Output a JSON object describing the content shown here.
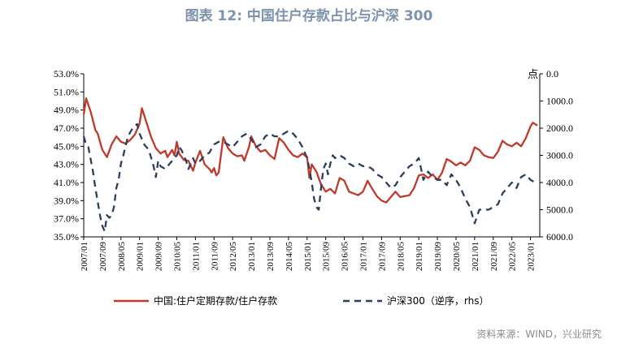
{
  "chart_data": {
    "type": "line",
    "title": "图表 12: 中国住户存款占比与沪深 300",
    "right_axis_label": "点",
    "source": "资料来源：WIND，兴业研究",
    "x_ticks": [
      "2007/01",
      "2007/09",
      "2008/05",
      "2009/01",
      "2009/09",
      "2010/05",
      "2011/01",
      "2011/09",
      "2012/05",
      "2013/01",
      "2013/09",
      "2014/05",
      "2015/01",
      "2015/09",
      "2016/05",
      "2017/01",
      "2017/09",
      "2018/05",
      "2019/01",
      "2019/09",
      "2020/05",
      "2021/01",
      "2021/09",
      "2022/05",
      "2023/01"
    ],
    "y_left": {
      "min": 35.0,
      "max": 53.0,
      "ticks": [
        "35.0%",
        "37.0%",
        "39.0%",
        "41.0%",
        "43.0%",
        "45.0%",
        "47.0%",
        "49.0%",
        "51.0%",
        "53.0%"
      ]
    },
    "y_right": {
      "min": 0,
      "max": 6000,
      "inverted": true,
      "ticks": [
        "0.0",
        "1000.0",
        "2000.0",
        "3000.0",
        "4000.0",
        "5000.0",
        "6000.0"
      ]
    },
    "series": [
      {
        "name": "中国:住户定期存款/住户存款",
        "axis": "left",
        "color": "#c0392b",
        "style": "solid",
        "points": [
          [
            "2007/01",
            48.5
          ],
          [
            "2007/02",
            50.3
          ],
          [
            "2007/04",
            48.8
          ],
          [
            "2007/06",
            46.8
          ],
          [
            "2007/07",
            46.4
          ],
          [
            "2007/09",
            44.6
          ],
          [
            "2007/11",
            43.8
          ],
          [
            "2008/01",
            45.2
          ],
          [
            "2008/03",
            46.1
          ],
          [
            "2008/05",
            45.5
          ],
          [
            "2008/07",
            45.3
          ],
          [
            "2008/09",
            45.7
          ],
          [
            "2008/11",
            46.3
          ],
          [
            "2009/01",
            47.5
          ],
          [
            "2009/02",
            49.2
          ],
          [
            "2009/04",
            47.6
          ],
          [
            "2009/06",
            46.0
          ],
          [
            "2009/08",
            44.8
          ],
          [
            "2009/10",
            44.2
          ],
          [
            "2009/12",
            44.5
          ],
          [
            "2010/01",
            43.8
          ],
          [
            "2010/03",
            44.6
          ],
          [
            "2010/04",
            44.0
          ],
          [
            "2010/05",
            45.5
          ],
          [
            "2010/06",
            44.2
          ],
          [
            "2010/08",
            43.5
          ],
          [
            "2010/10",
            43.4
          ],
          [
            "2010/12",
            42.3
          ],
          [
            "2011/01",
            43.2
          ],
          [
            "2011/03",
            44.5
          ],
          [
            "2011/05",
            43.0
          ],
          [
            "2011/07",
            42.5
          ],
          [
            "2011/08",
            42.1
          ],
          [
            "2011/09",
            42.6
          ],
          [
            "2011/10",
            41.8
          ],
          [
            "2011/11",
            42.1
          ],
          [
            "2012/01",
            46.0
          ],
          [
            "2012/03",
            44.8
          ],
          [
            "2012/05",
            44.2
          ],
          [
            "2012/07",
            43.9
          ],
          [
            "2012/09",
            44.0
          ],
          [
            "2012/10",
            43.4
          ],
          [
            "2012/12",
            44.9
          ],
          [
            "2013/01",
            46.1
          ],
          [
            "2013/03",
            45.0
          ],
          [
            "2013/05",
            44.4
          ],
          [
            "2013/07",
            44.6
          ],
          [
            "2013/09",
            44.0
          ],
          [
            "2013/11",
            43.6
          ],
          [
            "2014/01",
            45.9
          ],
          [
            "2014/03",
            45.4
          ],
          [
            "2014/05",
            44.6
          ],
          [
            "2014/07",
            44.0
          ],
          [
            "2014/09",
            43.8
          ],
          [
            "2014/11",
            44.2
          ],
          [
            "2015/01",
            43.8
          ],
          [
            "2015/02",
            41.5
          ],
          [
            "2015/03",
            43.0
          ],
          [
            "2015/05",
            42.2
          ],
          [
            "2015/07",
            40.8
          ],
          [
            "2015/09",
            40.0
          ],
          [
            "2015/11",
            40.3
          ],
          [
            "2016/01",
            39.8
          ],
          [
            "2016/03",
            41.5
          ],
          [
            "2016/05",
            41.2
          ],
          [
            "2016/07",
            40.0
          ],
          [
            "2016/09",
            39.8
          ],
          [
            "2016/11",
            39.6
          ],
          [
            "2017/01",
            40.0
          ],
          [
            "2017/03",
            41.2
          ],
          [
            "2017/05",
            40.3
          ],
          [
            "2017/07",
            39.5
          ],
          [
            "2017/09",
            39.0
          ],
          [
            "2017/11",
            38.8
          ],
          [
            "2018/01",
            39.4
          ],
          [
            "2018/03",
            40.0
          ],
          [
            "2018/05",
            39.4
          ],
          [
            "2018/07",
            39.5
          ],
          [
            "2018/09",
            39.6
          ],
          [
            "2018/11",
            40.4
          ],
          [
            "2019/01",
            41.8
          ],
          [
            "2019/03",
            41.9
          ],
          [
            "2019/05",
            41.5
          ],
          [
            "2019/07",
            41.9
          ],
          [
            "2019/09",
            41.3
          ],
          [
            "2019/11",
            42.1
          ],
          [
            "2020/01",
            43.6
          ],
          [
            "2020/03",
            43.3
          ],
          [
            "2020/05",
            42.9
          ],
          [
            "2020/07",
            43.2
          ],
          [
            "2020/09",
            42.9
          ],
          [
            "2020/11",
            43.4
          ],
          [
            "2021/01",
            44.9
          ],
          [
            "2021/03",
            44.6
          ],
          [
            "2021/05",
            44.0
          ],
          [
            "2021/07",
            43.8
          ],
          [
            "2021/09",
            43.7
          ],
          [
            "2021/11",
            44.4
          ],
          [
            "2022/01",
            45.6
          ],
          [
            "2022/03",
            45.2
          ],
          [
            "2022/05",
            45.0
          ],
          [
            "2022/07",
            45.4
          ],
          [
            "2022/09",
            45.0
          ],
          [
            "2022/11",
            45.9
          ],
          [
            "2023/01",
            47.2
          ],
          [
            "2023/02",
            47.6
          ],
          [
            "2023/04",
            47.3
          ]
        ]
      },
      {
        "name": "沪深300（逆序，rhs）",
        "axis": "right",
        "color": "#2c3e5c",
        "style": "dashed",
        "points": [
          [
            "2007/01",
            2300
          ],
          [
            "2007/02",
            2600
          ],
          [
            "2007/03",
            2700
          ],
          [
            "2007/05",
            3600
          ],
          [
            "2007/06",
            4200
          ],
          [
            "2007/08",
            5200
          ],
          [
            "2007/09",
            5600
          ],
          [
            "2007/10",
            5800
          ],
          [
            "2007/11",
            5200
          ],
          [
            "2007/12",
            5300
          ],
          [
            "2008/01",
            5200
          ],
          [
            "2008/02",
            4900
          ],
          [
            "2008/03",
            4200
          ],
          [
            "2008/04",
            3900
          ],
          [
            "2008/05",
            3300
          ],
          [
            "2008/06",
            3000
          ],
          [
            "2008/08",
            2300
          ],
          [
            "2008/10",
            2000
          ],
          [
            "2008/11",
            1900
          ],
          [
            "2008/12",
            1850
          ],
          [
            "2009/01",
            2200
          ],
          [
            "2009/03",
            2600
          ],
          [
            "2009/05",
            2800
          ],
          [
            "2009/07",
            3400
          ],
          [
            "2009/08",
            3800
          ],
          [
            "2009/09",
            3200
          ],
          [
            "2009/10",
            3400
          ],
          [
            "2009/12",
            3500
          ],
          [
            "2010/01",
            3400
          ],
          [
            "2010/03",
            3200
          ],
          [
            "2010/05",
            3000
          ],
          [
            "2010/06",
            2700
          ],
          [
            "2010/07",
            2800
          ],
          [
            "2010/09",
            3200
          ],
          [
            "2010/10",
            3500
          ],
          [
            "2010/12",
            3100
          ],
          [
            "2011/01",
            3300
          ],
          [
            "2011/03",
            3200
          ],
          [
            "2011/05",
            3000
          ],
          [
            "2011/07",
            2900
          ],
          [
            "2011/09",
            2600
          ],
          [
            "2011/11",
            2500
          ],
          [
            "2012/01",
            2500
          ],
          [
            "2012/03",
            2600
          ],
          [
            "2012/05",
            2700
          ],
          [
            "2012/07",
            2500
          ],
          [
            "2012/09",
            2300
          ],
          [
            "2012/11",
            2200
          ],
          [
            "2013/01",
            2400
          ],
          [
            "2013/03",
            2700
          ],
          [
            "2013/05",
            2600
          ],
          [
            "2013/07",
            2300
          ],
          [
            "2013/09",
            2200
          ],
          [
            "2013/11",
            2300
          ],
          [
            "2014/01",
            2300
          ],
          [
            "2014/03",
            2200
          ],
          [
            "2014/05",
            2100
          ],
          [
            "2014/07",
            2200
          ],
          [
            "2014/09",
            2400
          ],
          [
            "2014/11",
            2700
          ],
          [
            "2015/01",
            3100
          ],
          [
            "2015/02",
            3500
          ],
          [
            "2015/03",
            4000
          ],
          [
            "2015/04",
            4600
          ],
          [
            "2015/05",
            4900
          ],
          [
            "2015/06",
            5000
          ],
          [
            "2015/07",
            4200
          ],
          [
            "2015/08",
            3500
          ],
          [
            "2015/09",
            3300
          ],
          [
            "2015/10",
            3700
          ],
          [
            "2015/11",
            3300
          ],
          [
            "2015/12",
            3000
          ],
          [
            "2016/01",
            3100
          ],
          [
            "2016/03",
            3000
          ],
          [
            "2016/05",
            3100
          ],
          [
            "2016/07",
            3300
          ],
          [
            "2016/09",
            3400
          ],
          [
            "2016/11",
            3300
          ],
          [
            "2017/01",
            3400
          ],
          [
            "2017/03",
            3400
          ],
          [
            "2017/05",
            3500
          ],
          [
            "2017/07",
            3700
          ],
          [
            "2017/09",
            3800
          ],
          [
            "2017/11",
            4000
          ],
          [
            "2018/01",
            4200
          ],
          [
            "2018/03",
            4100
          ],
          [
            "2018/05",
            3800
          ],
          [
            "2018/07",
            3600
          ],
          [
            "2018/09",
            3400
          ],
          [
            "2018/11",
            3300
          ],
          [
            "2019/01",
            3100
          ],
          [
            "2019/03",
            3900
          ],
          [
            "2019/05",
            3600
          ],
          [
            "2019/07",
            3800
          ],
          [
            "2019/09",
            3900
          ],
          [
            "2019/11",
            3900
          ],
          [
            "2020/01",
            4100
          ],
          [
            "2020/03",
            3700
          ],
          [
            "2020/05",
            3900
          ],
          [
            "2020/07",
            4200
          ],
          [
            "2020/09",
            4600
          ],
          [
            "2020/11",
            4900
          ],
          [
            "2021/01",
            5500
          ],
          [
            "2021/03",
            5000
          ],
          [
            "2021/05",
            5000
          ],
          [
            "2021/07",
            5000
          ],
          [
            "2021/09",
            4900
          ],
          [
            "2021/11",
            4800
          ],
          [
            "2022/01",
            4400
          ],
          [
            "2022/03",
            4200
          ],
          [
            "2022/05",
            4000
          ],
          [
            "2022/07",
            4200
          ],
          [
            "2022/09",
            3800
          ],
          [
            "2022/11",
            3700
          ],
          [
            "2023/01",
            3900
          ],
          [
            "2023/03",
            4000
          ],
          [
            "2023/04",
            4050
          ]
        ]
      }
    ],
    "legend_position": "bottom",
    "grid": false
  }
}
